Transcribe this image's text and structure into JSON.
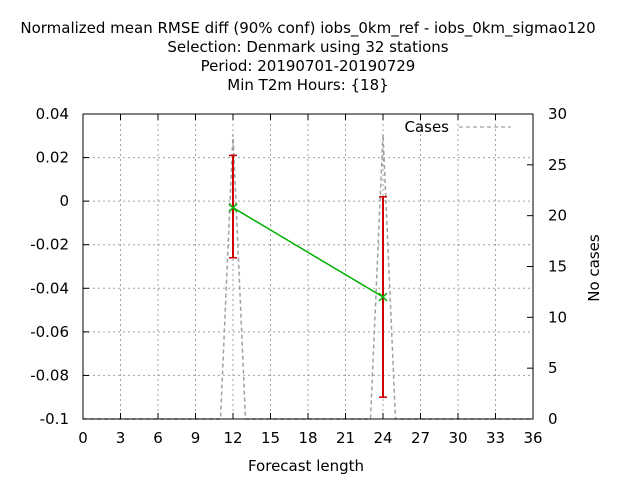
{
  "chart_data": {
    "type": "line",
    "title": [
      "Normalized mean RMSE diff (90% conf) iobs_0km_ref - iobs_0km_sigmao120",
      "Selection: Denmark using    32 stations",
      "Period: 20190701-20190729",
      "Min T2m   Hours: {18}"
    ],
    "xlabel": "Forecast length",
    "ylabel": "",
    "y2label": "No cases",
    "xlim": [
      0,
      36
    ],
    "ylim": [
      -0.1,
      0.04
    ],
    "y2lim": [
      0,
      30
    ],
    "xticks": [
      "0",
      "3",
      "6",
      "9",
      "12",
      "15",
      "18",
      "21",
      "24",
      "27",
      "30",
      "33",
      "36"
    ],
    "yticks": [
      "0.04",
      "0.02",
      "0",
      "-0.02",
      "-0.04",
      "-0.06",
      "-0.08",
      "-0.1"
    ],
    "y2ticks": [
      "30",
      "25",
      "20",
      "15",
      "10",
      "5",
      "0"
    ],
    "grid": true,
    "legend_position": "top-right",
    "series": [
      {
        "label": "",
        "color": "#00b000",
        "x": [
          12,
          24
        ],
        "y": [
          -0.003,
          -0.044
        ],
        "error_low": [
          -0.026,
          -0.09
        ],
        "error_high": [
          0.021,
          0.002
        ],
        "error_color": "#cc0000"
      },
      {
        "name": "Cases",
        "axis": "y2",
        "color": "#a0a0a0",
        "dashed": true,
        "x": [
          0,
          11,
          12,
          13,
          23,
          24,
          25,
          36
        ],
        "y": [
          0,
          0,
          28,
          0,
          0,
          28,
          0,
          0
        ]
      }
    ]
  }
}
